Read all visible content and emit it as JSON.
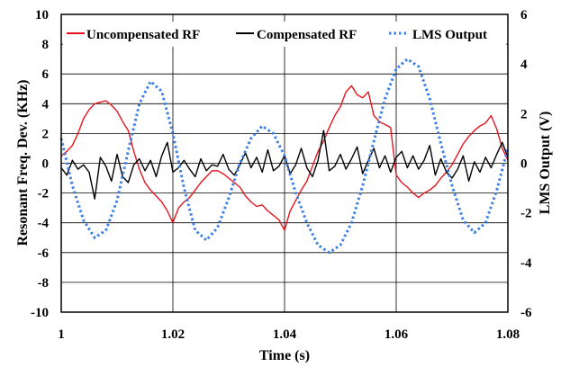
{
  "chart_data": {
    "type": "line",
    "xlabel": "Time (s)",
    "ylabel": "Resonant Freq. Dev. (KHz)",
    "y2label": "LMS Output (V)",
    "xlim": [
      1.0,
      1.08
    ],
    "ylim": [
      -10,
      10
    ],
    "y2lim": [
      -6,
      6
    ],
    "grid": true,
    "legend_position": "top",
    "x_ticks": [
      "1",
      "1.02",
      "1.04",
      "1.06",
      "1.08"
    ],
    "y_ticks": [
      "-10",
      "-8",
      "-6",
      "-4",
      "-2",
      "0",
      "2",
      "4",
      "6",
      "8",
      "10"
    ],
    "y2_ticks": [
      "-6",
      "-4",
      "-2",
      "0",
      "2",
      "4",
      "6"
    ],
    "series": [
      {
        "name": "Uncompensated RF",
        "axis": "left",
        "color": "#e8141c",
        "style": "solid",
        "x": [
          1.0,
          1.001,
          1.002,
          1.003,
          1.004,
          1.005,
          1.006,
          1.007,
          1.008,
          1.009,
          1.01,
          1.011,
          1.012,
          1.013,
          1.014,
          1.015,
          1.016,
          1.017,
          1.018,
          1.019,
          1.02,
          1.021,
          1.022,
          1.023,
          1.024,
          1.025,
          1.026,
          1.027,
          1.028,
          1.029,
          1.03,
          1.031,
          1.032,
          1.033,
          1.034,
          1.035,
          1.036,
          1.037,
          1.038,
          1.039,
          1.04,
          1.041,
          1.042,
          1.043,
          1.044,
          1.045,
          1.046,
          1.047,
          1.048,
          1.049,
          1.05,
          1.051,
          1.052,
          1.053,
          1.054,
          1.055,
          1.056,
          1.057,
          1.058,
          1.059,
          1.06,
          1.061,
          1.062,
          1.063,
          1.064,
          1.065,
          1.066,
          1.067,
          1.068,
          1.069,
          1.07,
          1.071,
          1.072,
          1.073,
          1.074,
          1.075,
          1.076,
          1.077,
          1.078,
          1.079,
          1.08
        ],
        "values": [
          0.5,
          0.8,
          1.2,
          2.0,
          3.0,
          3.6,
          4.0,
          4.1,
          4.2,
          3.9,
          3.5,
          2.8,
          2.2,
          0.8,
          -0.4,
          -1.3,
          -1.8,
          -2.2,
          -2.6,
          -3.2,
          -4.0,
          -3.0,
          -2.6,
          -2.3,
          -1.8,
          -1.3,
          -0.9,
          -0.5,
          -0.5,
          -0.7,
          -1.0,
          -1.3,
          -1.6,
          -2.2,
          -2.6,
          -2.9,
          -2.8,
          -3.2,
          -3.5,
          -3.8,
          -4.5,
          -3.2,
          -2.5,
          -1.8,
          -1.2,
          -0.2,
          0.8,
          1.5,
          2.4,
          3.2,
          3.8,
          4.8,
          5.2,
          4.6,
          4.4,
          4.8,
          3.2,
          2.8,
          2.6,
          2.4,
          -0.8,
          -1.3,
          -1.6,
          -2.0,
          -2.3,
          -2.0,
          -1.8,
          -1.5,
          -1.0,
          -0.6,
          -0.1,
          0.6,
          1.3,
          1.8,
          2.2,
          2.5,
          2.7,
          3.2,
          2.3,
          1.0,
          0.2
        ]
      },
      {
        "name": "Compensated RF",
        "axis": "left",
        "color": "#000000",
        "style": "solid",
        "x": [
          1.0,
          1.001,
          1.002,
          1.003,
          1.004,
          1.005,
          1.006,
          1.007,
          1.008,
          1.009,
          1.01,
          1.011,
          1.012,
          1.013,
          1.014,
          1.015,
          1.016,
          1.017,
          1.018,
          1.019,
          1.02,
          1.021,
          1.022,
          1.023,
          1.024,
          1.025,
          1.026,
          1.027,
          1.028,
          1.029,
          1.03,
          1.031,
          1.032,
          1.033,
          1.034,
          1.035,
          1.036,
          1.037,
          1.038,
          1.039,
          1.04,
          1.041,
          1.042,
          1.043,
          1.044,
          1.045,
          1.046,
          1.047,
          1.048,
          1.049,
          1.05,
          1.051,
          1.052,
          1.053,
          1.054,
          1.055,
          1.056,
          1.057,
          1.058,
          1.059,
          1.06,
          1.061,
          1.062,
          1.063,
          1.064,
          1.065,
          1.066,
          1.067,
          1.068,
          1.069,
          1.07,
          1.071,
          1.072,
          1.073,
          1.074,
          1.075,
          1.076,
          1.077,
          1.078,
          1.079,
          1.08
        ],
        "values": [
          -0.3,
          -0.8,
          0.2,
          -0.4,
          -0.1,
          -0.6,
          -2.4,
          0.4,
          -0.2,
          -1.2,
          0.6,
          -0.9,
          -1.3,
          -0.1,
          0.3,
          -0.5,
          0.2,
          -0.9,
          0.5,
          1.4,
          -0.6,
          -0.3,
          0.2,
          -0.4,
          -0.9,
          0.3,
          -0.5,
          -0.1,
          -0.2,
          0.6,
          -0.4,
          -0.8,
          -0.1,
          0.7,
          -0.3,
          0.4,
          -0.6,
          0.9,
          -0.5,
          -0.2,
          0.5,
          -0.7,
          -0.1,
          1.0,
          -0.3,
          -0.9,
          0.2,
          2.2,
          -0.5,
          -0.2,
          0.6,
          -0.4,
          0.3,
          1.1,
          -0.7,
          0.2,
          1.0,
          -0.3,
          0.5,
          -0.6,
          0.4,
          0.8,
          -0.3,
          0.5,
          -0.4,
          0.2,
          1.2,
          -0.8,
          0.3,
          -0.6,
          -1.0,
          -0.4,
          0.5,
          -1.2,
          0.1,
          -0.6,
          0.4,
          -0.3,
          0.6,
          1.4,
          0.4
        ]
      },
      {
        "name": "LMS Output",
        "axis": "right",
        "color": "#3a7ee6",
        "style": "dotted",
        "x": [
          1.0,
          1.002,
          1.004,
          1.006,
          1.008,
          1.01,
          1.012,
          1.014,
          1.016,
          1.018,
          1.02,
          1.022,
          1.024,
          1.026,
          1.028,
          1.03,
          1.032,
          1.034,
          1.036,
          1.038,
          1.04,
          1.042,
          1.044,
          1.046,
          1.048,
          1.05,
          1.052,
          1.054,
          1.056,
          1.058,
          1.06,
          1.062,
          1.064,
          1.066,
          1.068,
          1.07,
          1.072,
          1.074,
          1.076,
          1.078,
          1.08
        ],
        "values": [
          1.0,
          -0.9,
          -2.3,
          -3.0,
          -2.7,
          -1.5,
          0.5,
          2.4,
          3.3,
          2.9,
          1.2,
          -1.0,
          -2.7,
          -3.1,
          -2.6,
          -1.4,
          0.0,
          1.0,
          1.5,
          1.2,
          0.3,
          -1.2,
          -2.4,
          -3.3,
          -3.6,
          -3.3,
          -2.4,
          -0.9,
          0.9,
          2.6,
          3.8,
          4.2,
          3.9,
          2.6,
          0.8,
          -0.9,
          -2.3,
          -2.8,
          -2.4,
          -1.1,
          0.6
        ]
      }
    ]
  }
}
